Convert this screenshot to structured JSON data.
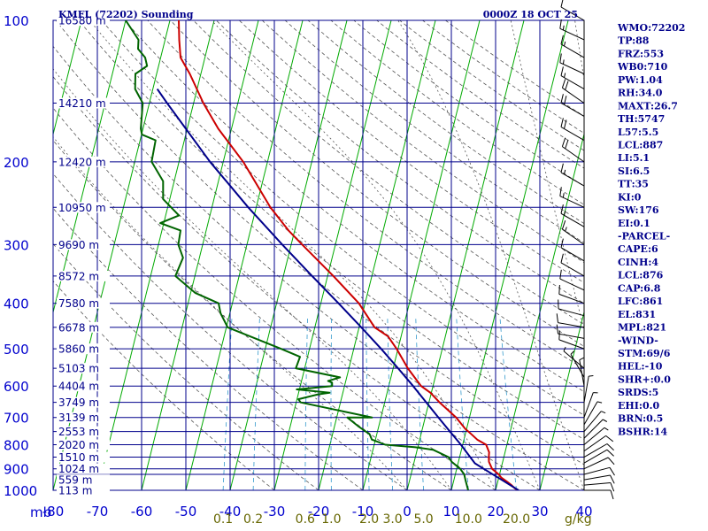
{
  "chart_data": {
    "type": "line",
    "title": "KMFL (72202) Sounding",
    "time": "0000Z 18 OCT 25",
    "pressure_unit_label": "mb",
    "mixing_ratio_unit_label": "g/kg",
    "xlim": [
      -80,
      40
    ],
    "ylim": [
      1000,
      100
    ],
    "pressure_ticks": [
      100,
      200,
      300,
      400,
      500,
      600,
      700,
      800,
      900,
      1000
    ],
    "pressure_levels_extra": [
      150,
      250,
      350,
      450,
      550,
      650,
      750,
      850,
      925
    ],
    "temperature_ticks": [
      -80,
      -70,
      -60,
      -50,
      -40,
      -30,
      -20,
      -10,
      0,
      10,
      20,
      30,
      40
    ],
    "temperature_tick_labels": [
      "-80",
      "-70",
      "-60",
      "-50",
      "-40",
      "-30",
      "-20",
      "-10",
      "0",
      "10",
      "20",
      "30",
      "40"
    ],
    "skew_deg_per_log": 26.4,
    "isotherms": [
      -160,
      -150,
      -140,
      -130,
      -120,
      -110,
      -100,
      -90,
      -80,
      -70,
      -60,
      -50,
      -40,
      -30,
      -20,
      -10,
      0,
      10,
      20,
      30,
      40
    ],
    "dry_adiabats_theta_c": [
      -30,
      -20,
      -10,
      0,
      10,
      20,
      30,
      40,
      50,
      60,
      70,
      80,
      90,
      100,
      110,
      120,
      130,
      140,
      150,
      160,
      170,
      180,
      190,
      200,
      210,
      220
    ],
    "moist_adiabats_thetae_c": [
      0,
      10,
      20,
      30,
      40,
      50,
      60
    ],
    "mixing_ratios": [
      0.1,
      0.2,
      0.6,
      1.0,
      2.0,
      3.0,
      5.0,
      10.0,
      20.0
    ],
    "mixing_ratio_labels": [
      "0.1",
      "0.2",
      "0.6",
      "1.0",
      "2.0",
      "3.0",
      "5.0",
      "10.0",
      "20.0"
    ],
    "height_labels": [
      {
        "p": 1000,
        "text": "113 m"
      },
      {
        "p": 950,
        "text": "559 m"
      },
      {
        "p": 900,
        "text": "1024 m"
      },
      {
        "p": 850,
        "text": "1510 m"
      },
      {
        "p": 800,
        "text": "2020 m"
      },
      {
        "p": 750,
        "text": "2553 m"
      },
      {
        "p": 700,
        "text": "3139 m"
      },
      {
        "p": 650,
        "text": "3749 m"
      },
      {
        "p": 600,
        "text": "4404 m"
      },
      {
        "p": 550,
        "text": "5103 m"
      },
      {
        "p": 500,
        "text": "5860 m"
      },
      {
        "p": 450,
        "text": "6678 m"
      },
      {
        "p": 400,
        "text": "7580 m"
      },
      {
        "p": 350,
        "text": "8572 m"
      },
      {
        "p": 300,
        "text": "9690 m"
      },
      {
        "p": 250,
        "text": "10950 m"
      },
      {
        "p": 200,
        "text": "12420 m"
      },
      {
        "p": 150,
        "text": "14210 m"
      },
      {
        "p": 100,
        "text": "16580 m"
      }
    ],
    "series": [
      {
        "name": "Temperature",
        "color": "#cc0000",
        "points": [
          [
            1000,
            25.2
          ],
          [
            990,
            24.2
          ],
          [
            975,
            23.3
          ],
          [
            960,
            22.2
          ],
          [
            940,
            20.6
          ],
          [
            925,
            19.8
          ],
          [
            900,
            18.0
          ],
          [
            870,
            16.9
          ],
          [
            850,
            16.6
          ],
          [
            830,
            16.4
          ],
          [
            800,
            15.3
          ],
          [
            780,
            13.0
          ],
          [
            760,
            11.4
          ],
          [
            740,
            9.7
          ],
          [
            700,
            7.0
          ],
          [
            650,
            2.4
          ],
          [
            620,
            -0.2
          ],
          [
            600,
            -2.7
          ],
          [
            550,
            -6.7
          ],
          [
            500,
            -10.3
          ],
          [
            470,
            -13.0
          ],
          [
            450,
            -16.5
          ],
          [
            400,
            -21.4
          ],
          [
            350,
            -28.7
          ],
          [
            300,
            -37.5
          ],
          [
            280,
            -41.4
          ],
          [
            250,
            -46.8
          ],
          [
            200,
            -55.5
          ],
          [
            170,
            -63.0
          ],
          [
            150,
            -67.8
          ],
          [
            130,
            -72.5
          ],
          [
            120,
            -75.5
          ],
          [
            110,
            -76.8
          ],
          [
            100,
            -78.0
          ]
        ]
      },
      {
        "name": "Dewpoint",
        "color": "#006400",
        "points": [
          [
            1000,
            13.8
          ],
          [
            975,
            13.2
          ],
          [
            950,
            12.6
          ],
          [
            925,
            12.0
          ],
          [
            900,
            10.8
          ],
          [
            870,
            8.5
          ],
          [
            850,
            7.5
          ],
          [
            820,
            3.6
          ],
          [
            810,
            -0.5
          ],
          [
            800,
            -7.5
          ],
          [
            780,
            -10.8
          ],
          [
            760,
            -11.6
          ],
          [
            730,
            -14.7
          ],
          [
            700,
            -17.6
          ],
          [
            700,
            -12.0
          ],
          [
            680,
            -18.6
          ],
          [
            650,
            -29.0
          ],
          [
            640,
            -29.7
          ],
          [
            625,
            -25.5
          ],
          [
            620,
            -23.0
          ],
          [
            610,
            -30.6
          ],
          [
            600,
            -22.8
          ],
          [
            590,
            -23.0
          ],
          [
            585,
            -24.0
          ],
          [
            575,
            -21.5
          ],
          [
            550,
            -32.0
          ],
          [
            520,
            -31.7
          ],
          [
            500,
            -36.4
          ],
          [
            450,
            -49.7
          ],
          [
            420,
            -52.1
          ],
          [
            400,
            -53.1
          ],
          [
            380,
            -59.0
          ],
          [
            350,
            -64.4
          ],
          [
            320,
            -63.7
          ],
          [
            300,
            -65.5
          ],
          [
            280,
            -65.8
          ],
          [
            270,
            -70.8
          ],
          [
            260,
            -67.0
          ],
          [
            240,
            -71.5
          ],
          [
            220,
            -72.5
          ],
          [
            200,
            -76.2
          ],
          [
            180,
            -76.5
          ],
          [
            175,
            -79.9
          ],
          [
            170,
            -80.5
          ],
          [
            150,
            -81.5
          ],
          [
            140,
            -84.0
          ],
          [
            130,
            -84.8
          ],
          [
            125,
            -82.6
          ],
          [
            120,
            -83.5
          ],
          [
            115,
            -85.6
          ],
          [
            110,
            -86.0
          ],
          [
            100,
            -90.0
          ]
        ]
      },
      {
        "name": "Parcel",
        "color": "#00008b",
        "points": [
          [
            1000,
            25.2
          ],
          [
            950,
            20.8
          ],
          [
            900,
            16.1
          ],
          [
            876,
            13.8
          ],
          [
            861,
            13.0
          ],
          [
            850,
            12.4
          ],
          [
            800,
            9.6
          ],
          [
            750,
            6.4
          ],
          [
            700,
            3.0
          ],
          [
            650,
            -0.6
          ],
          [
            600,
            -4.5
          ],
          [
            550,
            -8.9
          ],
          [
            500,
            -13.8
          ],
          [
            450,
            -19.5
          ],
          [
            400,
            -26.0
          ],
          [
            350,
            -33.5
          ],
          [
            300,
            -42.0
          ],
          [
            250,
            -51.8
          ],
          [
            200,
            -63.0
          ],
          [
            150,
            -76.0
          ],
          [
            140,
            -79.0
          ]
        ]
      }
    ],
    "wind_profile": [
      {
        "p": 1000,
        "dir": 90,
        "spd": 10
      },
      {
        "p": 975,
        "dir": 85,
        "spd": 12
      },
      {
        "p": 950,
        "dir": 80,
        "spd": 13
      },
      {
        "p": 925,
        "dir": 75,
        "spd": 12
      },
      {
        "p": 900,
        "dir": 65,
        "spd": 10
      },
      {
        "p": 875,
        "dir": 60,
        "spd": 12
      },
      {
        "p": 850,
        "dir": 60,
        "spd": 12
      },
      {
        "p": 825,
        "dir": 55,
        "spd": 10
      },
      {
        "p": 800,
        "dir": 50,
        "spd": 8
      },
      {
        "p": 775,
        "dir": 45,
        "spd": 6
      },
      {
        "p": 750,
        "dir": 40,
        "spd": 5
      },
      {
        "p": 725,
        "dir": 30,
        "spd": 5
      },
      {
        "p": 700,
        "dir": 20,
        "spd": 5
      },
      {
        "p": 650,
        "dir": 10,
        "spd": 5
      },
      {
        "p": 600,
        "dir": 350,
        "spd": 6
      },
      {
        "p": 575,
        "dir": 330,
        "spd": 7
      },
      {
        "p": 550,
        "dir": 310,
        "spd": 8
      },
      {
        "p": 500,
        "dir": 290,
        "spd": 10
      },
      {
        "p": 475,
        "dir": 280,
        "spd": 10
      },
      {
        "p": 450,
        "dir": 280,
        "spd": 12
      },
      {
        "p": 425,
        "dir": 285,
        "spd": 12
      },
      {
        "p": 400,
        "dir": 290,
        "spd": 13
      },
      {
        "p": 375,
        "dir": 295,
        "spd": 12
      },
      {
        "p": 350,
        "dir": 300,
        "spd": 12
      },
      {
        "p": 325,
        "dir": 300,
        "spd": 14
      },
      {
        "p": 300,
        "dir": 305,
        "spd": 15
      },
      {
        "p": 275,
        "dir": 300,
        "spd": 16
      },
      {
        "p": 250,
        "dir": 295,
        "spd": 18
      },
      {
        "p": 225,
        "dir": 300,
        "spd": 18
      },
      {
        "p": 200,
        "dir": 305,
        "spd": 20
      },
      {
        "p": 180,
        "dir": 300,
        "spd": 22
      },
      {
        "p": 160,
        "dir": 300,
        "spd": 22
      },
      {
        "p": 150,
        "dir": 305,
        "spd": 20
      },
      {
        "p": 140,
        "dir": 300,
        "spd": 18
      },
      {
        "p": 130,
        "dir": 295,
        "spd": 16
      },
      {
        "p": 120,
        "dir": 300,
        "spd": 15
      },
      {
        "p": 110,
        "dir": 295,
        "spd": 15
      },
      {
        "p": 100,
        "dir": 300,
        "spd": 14
      }
    ],
    "indices": [
      {
        "key": "WMO",
        "value": "72202"
      },
      {
        "key": "TP",
        "value": "88"
      },
      {
        "key": "FRZ",
        "value": "553"
      },
      {
        "key": "WB0",
        "value": "710"
      },
      {
        "key": "PW",
        "value": "1.04"
      },
      {
        "key": "RH",
        "value": "34.0"
      },
      {
        "key": "MAXT",
        "value": "26.7"
      },
      {
        "key": "TH",
        "value": "5747"
      },
      {
        "key": "L57",
        "value": "5.5"
      },
      {
        "key": "LCL",
        "value": "887"
      },
      {
        "key": "LI",
        "value": "5.1"
      },
      {
        "key": "SI",
        "value": "6.5"
      },
      {
        "key": "TT",
        "value": "35"
      },
      {
        "key": "KI",
        "value": "0"
      },
      {
        "key": "SW",
        "value": "176"
      },
      {
        "key": "EI",
        "value": "0.1"
      },
      {
        "key": "",
        "value": "-PARCEL-"
      },
      {
        "key": "CAPE",
        "value": "6"
      },
      {
        "key": "CINH",
        "value": "4"
      },
      {
        "key": "LCL",
        "value": "876"
      },
      {
        "key": "CAP",
        "value": "6.8"
      },
      {
        "key": "LFC",
        "value": "861"
      },
      {
        "key": "EL",
        "value": "831"
      },
      {
        "key": "MPL",
        "value": "821"
      },
      {
        "key": "",
        "value": "-WIND-"
      },
      {
        "key": "STM",
        "value": "69/6"
      },
      {
        "key": "HEL",
        "value": "-10"
      },
      {
        "key": "SHR+",
        "value": "0.0"
      },
      {
        "key": "SRDS",
        "value": "5"
      },
      {
        "key": "EHI",
        "value": "0.0"
      },
      {
        "key": "BRN",
        "value": "0.5"
      },
      {
        "key": "BSHR",
        "value": "14"
      }
    ],
    "colors": {
      "isobar": "#00008b",
      "isotherm": "#00aa00",
      "dry_adiabat": "#555555",
      "moist_adiabat": "#555555",
      "mixing_ratio": "#3399cc",
      "temperature": "#cc0000",
      "dewpoint": "#006400",
      "parcel": "#00008b",
      "wind": "#000000"
    }
  }
}
